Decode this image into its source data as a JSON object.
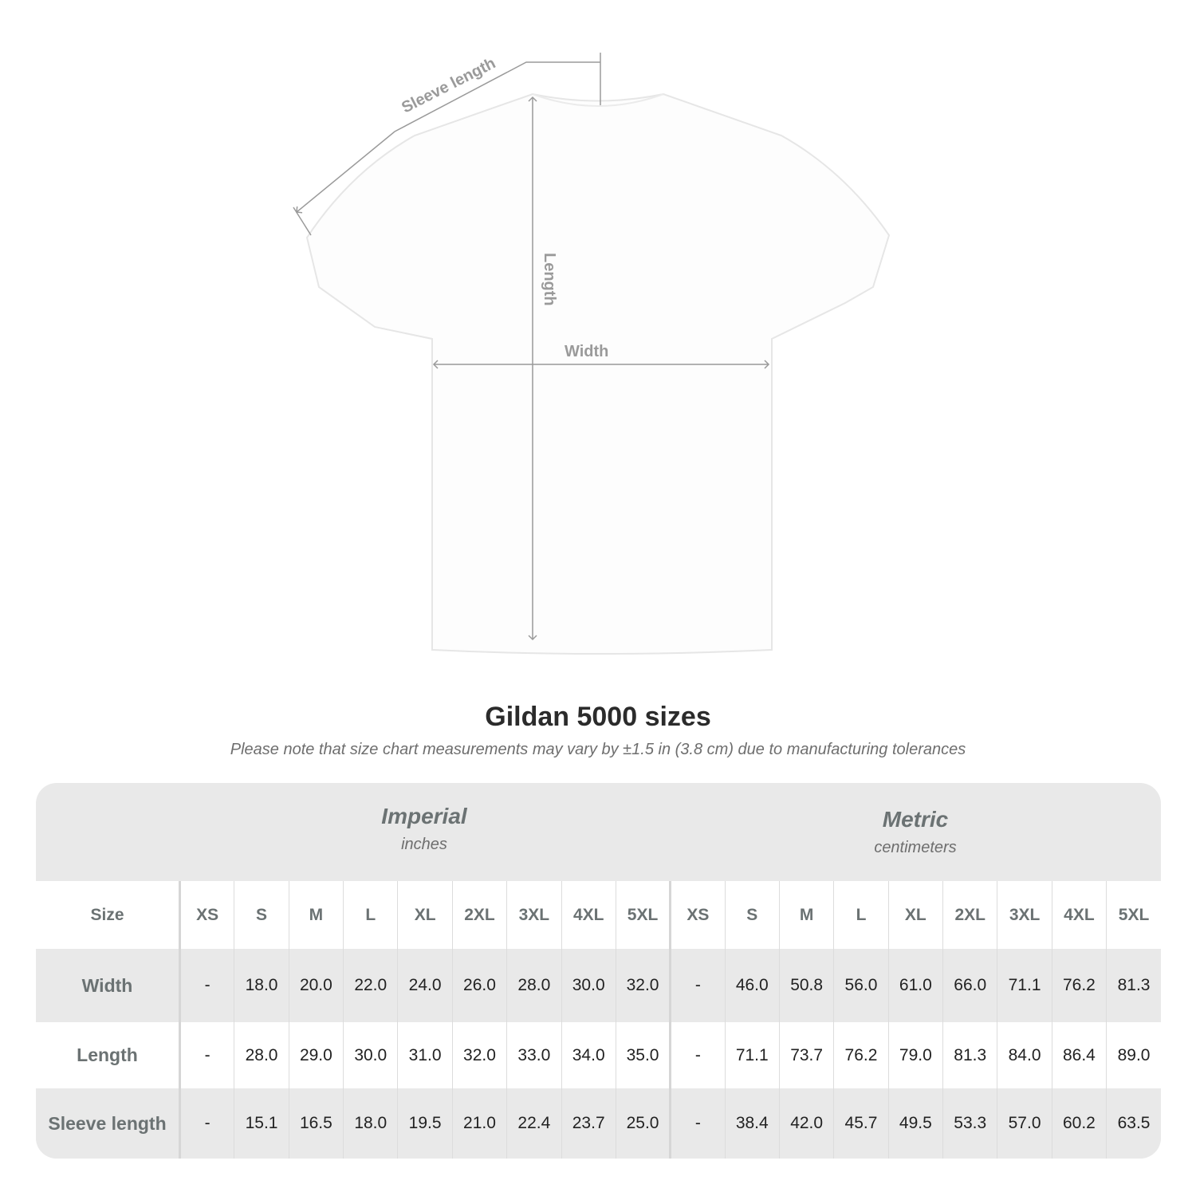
{
  "diagram": {
    "labels": {
      "sleeve": "Sleeve length",
      "length": "Length",
      "width": "Width"
    },
    "colors": {
      "shirt": "#fdfdfd",
      "outline": "#e6e6e6",
      "measure": "#9a9a9a"
    }
  },
  "title": "Gildan 5000 sizes",
  "note": "Please note that size chart measurements may vary by ±1.5 in (3.8 cm) due to manufacturing tolerances",
  "systems": {
    "imperial": {
      "name": "Imperial",
      "unit": "inches"
    },
    "metric": {
      "name": "Metric",
      "unit": "centimeters"
    }
  },
  "table": {
    "size_label": "Size",
    "sizes": [
      "XS",
      "S",
      "M",
      "L",
      "XL",
      "2XL",
      "3XL",
      "4XL",
      "5XL"
    ],
    "rows": [
      {
        "label": "Width",
        "imperial": [
          "-",
          "18.0",
          "20.0",
          "22.0",
          "24.0",
          "26.0",
          "28.0",
          "30.0",
          "32.0"
        ],
        "metric": [
          "-",
          "46.0",
          "50.8",
          "56.0",
          "61.0",
          "66.0",
          "71.1",
          "76.2",
          "81.3"
        ]
      },
      {
        "label": "Length",
        "imperial": [
          "-",
          "28.0",
          "29.0",
          "30.0",
          "31.0",
          "32.0",
          "33.0",
          "34.0",
          "35.0"
        ],
        "metric": [
          "-",
          "71.1",
          "73.7",
          "76.2",
          "79.0",
          "81.3",
          "84.0",
          "86.4",
          "89.0"
        ]
      },
      {
        "label": "Sleeve length",
        "imperial": [
          "-",
          "15.1",
          "16.5",
          "18.0",
          "19.5",
          "21.0",
          "22.4",
          "23.7",
          "25.0"
        ],
        "metric": [
          "-",
          "38.4",
          "42.0",
          "45.7",
          "49.5",
          "53.3",
          "57.0",
          "60.2",
          "63.5"
        ]
      }
    ]
  }
}
